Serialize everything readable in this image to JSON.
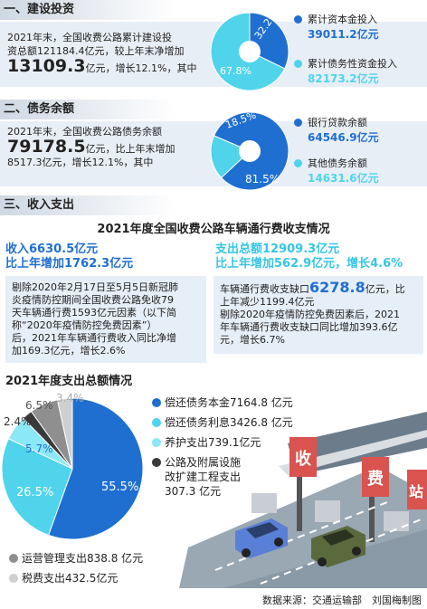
{
  "sections": {
    "s1": "一、建设投资",
    "s2": "二、债务余额",
    "s3": "三、收入支出"
  },
  "investment": {
    "text1": "2021年末，全国收费公路累计建设投",
    "text2": "资总额121184.4亿元，较上年末净增加",
    "big": "13109.3",
    "text3": "亿元，增长12.1%，其中",
    "legend": [
      {
        "label": "累计资本金投入",
        "value": "39011.2亿元"
      },
      {
        "label": "累计债务性资金投入",
        "value": "82173.2亿元"
      }
    ]
  },
  "debt": {
    "text1": "2021年末，全国收费公路债务余额",
    "big": "79178.5",
    "text2": "亿元，比上年末增加",
    "text3": "8517.3亿元，增长12.1%，其中",
    "legend": [
      {
        "label": "银行贷款余额",
        "value": "64546.9亿元"
      },
      {
        "label": "其他债务余额",
        "value": "14631.6亿元"
      }
    ]
  },
  "income": {
    "title": "2021年度全国收费公路车辆通行费收支情况",
    "left_h1": "收入6630.5亿元",
    "left_h2": "比上年增加1762.3亿元",
    "left_box": [
      "剔除2020年2月17日至5月5日新冠肺",
      "炎疫情防控期间全国收费公路免收79",
      "天车辆通行费1593亿元因素（以下简",
      "称“2020年疫情防控免费因素”）",
      "后，2021年车辆通行费收入同比净增",
      "加169.3亿元，增长2.6%"
    ],
    "right_h1": "支出总额12909.3亿元",
    "right_h2": "比上年增加562.9亿元，增长4.6%",
    "right_box_pre": "车辆通行费收支缺口",
    "right_box_big": "6278.8",
    "right_box_post": "亿元，比",
    "right_box": [
      "上年减少1199.4亿元",
      "剔除2020年疫情防控免费因素后，2021",
      "年车辆通行费收支缺口同比增加393.6亿",
      "元，增长6.7%"
    ]
  },
  "expense_title": "2021年度支出总额情况",
  "expense_legend": [
    "偿还债务本金7164.8 亿元",
    "偿还债务利息3426.8 亿元",
    "养护支出739.1亿元",
    "公路及附属设施",
    "改扩建工程支出",
    "307.3 亿元",
    "运营管理支出838.8 亿元",
    "税费支出432.5亿元"
  ],
  "illustration": {
    "sign1": "收",
    "sign2": "费",
    "sign3": "站"
  },
  "source": "数据来源：交通运输部　刘国梅制图",
  "colors": {
    "blue": "#1f6fd1",
    "cyan": "#4fd4ec",
    "lightcyan": "#8be8f7",
    "dark": "#3a3a3a",
    "gray": "#8f8f8f",
    "lightgray": "#cfcfcf"
  },
  "chart_data": [
    {
      "type": "pie",
      "categories": [
        "累计资本金投入",
        "累计债务性资金投入"
      ],
      "values": [
        32.2,
        67.8
      ],
      "labels": [
        "32.2%",
        "67.8%"
      ]
    },
    {
      "type": "pie",
      "categories": [
        "银行贷款余额",
        "其他债务余额"
      ],
      "values": [
        81.5,
        18.5
      ],
      "labels": [
        "81.5%",
        "18.5%"
      ]
    },
    {
      "type": "pie",
      "title": "2021年度支出总额情况",
      "categories": [
        "偿还债务本金",
        "偿还债务利息",
        "养护支出",
        "公路及附属设施改扩建工程支出",
        "运营管理支出",
        "税费支出"
      ],
      "values": [
        55.5,
        26.5,
        5.7,
        2.4,
        6.5,
        3.4
      ],
      "labels": [
        "55.5%",
        "26.5%",
        "5.7%",
        "2.4%",
        "6.5%",
        "3.4%"
      ]
    }
  ]
}
